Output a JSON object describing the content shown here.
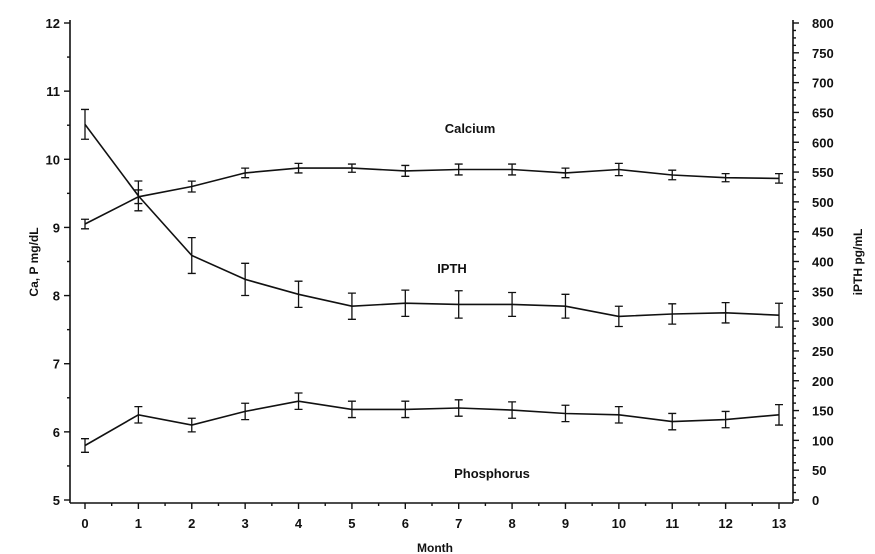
{
  "chart_data": {
    "type": "line",
    "xlabel": "Month",
    "ylabel_left": "Ca, P mg/dL",
    "ylabel_right": "iPTH pg/mL",
    "x": [
      0,
      1,
      2,
      3,
      4,
      5,
      6,
      7,
      8,
      9,
      10,
      11,
      12,
      13
    ],
    "x_ticks": [
      "0",
      "1",
      "2",
      "3",
      "4",
      "5",
      "6",
      "7",
      "8",
      "9",
      "10",
      "11",
      "12",
      "13"
    ],
    "xlim": [
      0,
      13
    ],
    "ylim_left": [
      5,
      12
    ],
    "ylim_right": [
      0,
      800
    ],
    "left_ticks": [
      "5",
      "6",
      "7",
      "8",
      "9",
      "10",
      "11",
      "12"
    ],
    "right_ticks": [
      "0",
      "50",
      "100",
      "150",
      "200",
      "250",
      "300",
      "350",
      "400",
      "450",
      "500",
      "550",
      "600",
      "650",
      "700",
      "750",
      "800"
    ],
    "series": [
      {
        "name": "Calcium",
        "axis": "left",
        "values": [
          9.05,
          9.45,
          9.6,
          9.8,
          9.87,
          9.87,
          9.83,
          9.85,
          9.85,
          9.8,
          9.85,
          9.77,
          9.73,
          9.72
        ],
        "errors": [
          0.07,
          0.1,
          0.08,
          0.07,
          0.07,
          0.06,
          0.08,
          0.08,
          0.08,
          0.07,
          0.09,
          0.07,
          0.06,
          0.07
        ]
      },
      {
        "name": "IPTH",
        "axis": "right",
        "values": [
          630,
          510,
          410,
          370,
          345,
          325,
          330,
          328,
          328,
          325,
          308,
          312,
          314,
          310
        ],
        "errors": [
          25,
          25,
          30,
          27,
          22,
          22,
          22,
          23,
          20,
          20,
          17,
          17,
          17,
          20
        ]
      },
      {
        "name": "Phosphorus",
        "axis": "left",
        "values": [
          5.8,
          6.25,
          6.1,
          6.3,
          6.45,
          6.33,
          6.33,
          6.35,
          6.32,
          6.27,
          6.25,
          6.15,
          6.18,
          6.25
        ],
        "errors": [
          0.1,
          0.12,
          0.1,
          0.12,
          0.12,
          0.12,
          0.12,
          0.12,
          0.12,
          0.12,
          0.12,
          0.12,
          0.12,
          0.15
        ]
      }
    ],
    "annotations": {
      "calcium": "Calcium",
      "ipth": "IPTH",
      "phosphorus": "Phosphorus"
    },
    "grid": false,
    "legend": "none"
  }
}
